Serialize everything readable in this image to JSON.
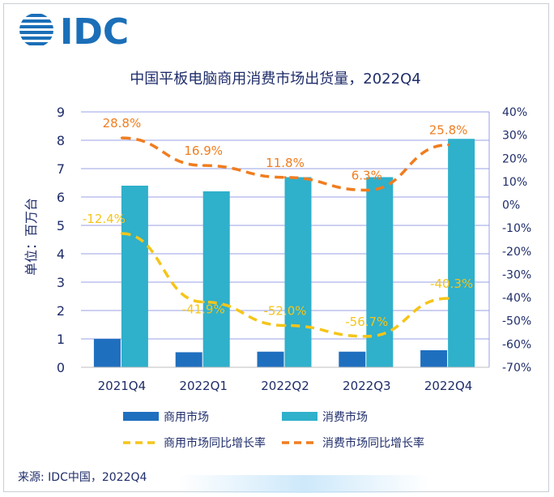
{
  "brand": {
    "logo_text": "IDC",
    "logo_color": "#1b6fb8"
  },
  "source": "来源: IDC中国，2022Q4",
  "chart_data": {
    "type": "bar",
    "title": "中国平板电脑商用消费市场出货量，2022Q4",
    "ylabel": "单位：百万台",
    "categories": [
      "2021Q4",
      "2022Q1",
      "2022Q2",
      "2022Q3",
      "2022Q4"
    ],
    "ylim": [
      0,
      9
    ],
    "y_ticks": [
      "0",
      "1",
      "2",
      "3",
      "4",
      "5",
      "6",
      "7",
      "8",
      "9"
    ],
    "y2lim": [
      -70,
      40
    ],
    "y2_ticks": [
      "-70%",
      "-60%",
      "-50%",
      "-40%",
      "-30%",
      "-20%",
      "-10%",
      "0%",
      "10%",
      "20%",
      "30%",
      "40%"
    ],
    "grid": true,
    "legend_position": "bottom",
    "series": [
      {
        "name": "商用市场",
        "kind": "bar",
        "axis": "left",
        "color": "#1f6fbf",
        "values": [
          1.0,
          0.53,
          0.55,
          0.55,
          0.6
        ]
      },
      {
        "name": "消费市场",
        "kind": "bar",
        "axis": "left",
        "color": "#2fb0cb",
        "values": [
          6.4,
          6.2,
          6.7,
          6.7,
          8.05
        ]
      },
      {
        "name": "商用市场同比增长率",
        "kind": "line",
        "dash": true,
        "axis": "right",
        "color": "#f5c518",
        "values": [
          -12.4,
          -41.9,
          -52.0,
          -56.7,
          -40.3
        ],
        "labels": [
          "-12.4%",
          "-41.9%",
          "-52.0%",
          "-56.7%",
          "-40.3%"
        ]
      },
      {
        "name": "消费市场同比增长率",
        "kind": "line",
        "dash": true,
        "axis": "right",
        "color": "#f07d1f",
        "values": [
          28.8,
          16.9,
          11.8,
          6.3,
          25.8
        ],
        "labels": [
          "28.8%",
          "16.9%",
          "11.8%",
          "6.3%",
          "25.8%"
        ]
      }
    ],
    "colors": {
      "axis_text": "#1f2d6a",
      "grid": "#9aa0e6",
      "title": "#1f2d6a"
    }
  }
}
